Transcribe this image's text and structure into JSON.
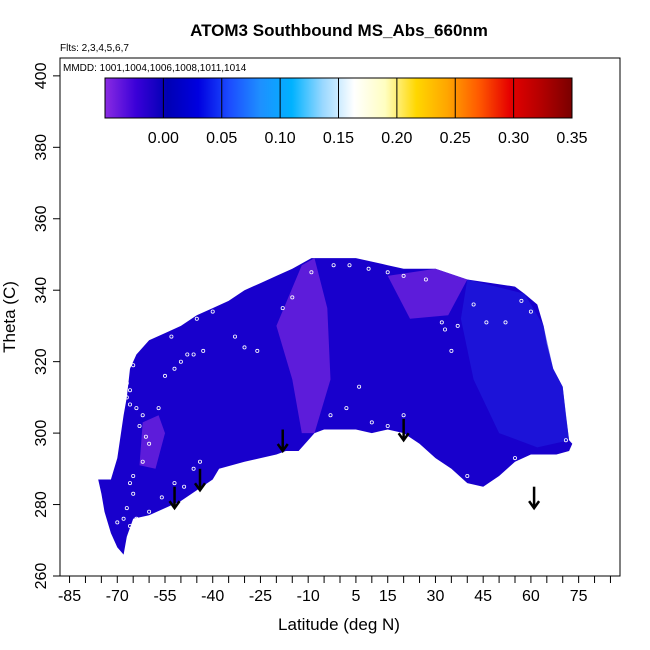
{
  "chart_data": {
    "type": "heatmap",
    "title": "ATOM3 Southbound MS_Abs_660nm",
    "flights_note": "Flts: 2,3,4,5,6,7",
    "mmdd_note": "MMDD: 1001,1004,1006,1008,1011,1014",
    "xlabel": "Latitude (deg N)",
    "ylabel": "Theta (C)",
    "xlim": [
      -88,
      88
    ],
    "ylim": [
      260,
      405
    ],
    "x_ticks": [
      -85,
      -70,
      -55,
      -40,
      -25,
      -10,
      5,
      15,
      30,
      45,
      60,
      75
    ],
    "x_minor_ticks": [
      -80,
      -75,
      -65,
      -60,
      -50,
      -45,
      -35,
      -30,
      -20,
      -15,
      -5,
      0,
      10,
      20,
      25,
      35,
      40,
      50,
      55,
      65,
      70,
      80,
      85
    ],
    "y_ticks": [
      260,
      280,
      300,
      320,
      340,
      360,
      380,
      400
    ],
    "grid": false,
    "colorbar": {
      "placement": "top",
      "range": [
        -0.05,
        0.35
      ],
      "ticks": [
        "0.00",
        "0.05",
        "0.10",
        "0.15",
        "0.20",
        "0.25",
        "0.30",
        "0.35"
      ],
      "tick_values": [
        0.0,
        0.05,
        0.1,
        0.15,
        0.2,
        0.25,
        0.3,
        0.35
      ],
      "colors": [
        "#8a2be2",
        "#3a00d8",
        "#0000b4",
        "#0000e0",
        "#1c4cff",
        "#1e90ff",
        "#00b2ff",
        "#9ad8ff",
        "#ffffff",
        "#fffec0",
        "#ffd700",
        "#ffa500",
        "#ff5a00",
        "#e60000",
        "#b40000",
        "#7a0000"
      ]
    },
    "field_color": "#1800cc",
    "field_color_light": "#2020e0",
    "field_color_purple": "#7a28e0",
    "data_envelope": {
      "upper": [
        [
          -72,
          287
        ],
        [
          -70,
          293
        ],
        [
          -68,
          305
        ],
        [
          -67,
          310
        ],
        [
          -66,
          318
        ],
        [
          -64,
          322
        ],
        [
          -60,
          326
        ],
        [
          -55,
          328
        ],
        [
          -50,
          330
        ],
        [
          -45,
          333
        ],
        [
          -40,
          335
        ],
        [
          -35,
          337
        ],
        [
          -30,
          340
        ],
        [
          -25,
          342
        ],
        [
          -20,
          344
        ],
        [
          -15,
          346
        ],
        [
          -13,
          347
        ],
        [
          -9,
          349
        ],
        [
          0,
          349
        ],
        [
          5,
          349
        ],
        [
          10,
          348
        ],
        [
          15,
          347
        ],
        [
          20,
          346
        ],
        [
          30,
          346
        ],
        [
          40,
          343
        ],
        [
          55,
          341
        ],
        [
          58,
          339
        ],
        [
          62,
          336
        ],
        [
          64,
          330
        ],
        [
          65,
          325
        ],
        [
          67,
          318
        ],
        [
          70,
          313
        ],
        [
          71,
          305
        ],
        [
          72,
          298
        ],
        [
          73,
          297
        ]
      ],
      "lower": [
        [
          72,
          295
        ],
        [
          68,
          294
        ],
        [
          60,
          294
        ],
        [
          55,
          292
        ],
        [
          50,
          288
        ],
        [
          45,
          285
        ],
        [
          40,
          286
        ],
        [
          35,
          290
        ],
        [
          30,
          293
        ],
        [
          25,
          297
        ],
        [
          20,
          300
        ],
        [
          15,
          301
        ],
        [
          10,
          300
        ],
        [
          5,
          301
        ],
        [
          0,
          301
        ],
        [
          -5,
          301
        ],
        [
          -8,
          300
        ],
        [
          -10,
          298
        ],
        [
          -13,
          295
        ],
        [
          -17,
          295
        ],
        [
          -20,
          294
        ],
        [
          -25,
          293
        ],
        [
          -30,
          292
        ],
        [
          -38,
          290
        ],
        [
          -40,
          287
        ],
        [
          -45,
          284
        ],
        [
          -50,
          281
        ],
        [
          -55,
          279
        ],
        [
          -60,
          277
        ],
        [
          -65,
          276
        ],
        [
          -67,
          271
        ],
        [
          -68,
          266
        ],
        [
          -70,
          268
        ],
        [
          -72,
          272
        ],
        [
          -74,
          278
        ],
        [
          -75,
          283
        ],
        [
          -76,
          287
        ]
      ]
    },
    "purple_regions": [
      [
        [
          -20,
          330
        ],
        [
          -12,
          347
        ],
        [
          -8,
          349
        ],
        [
          -4,
          335
        ],
        [
          -3,
          315
        ],
        [
          -8,
          300
        ],
        [
          -12,
          300
        ],
        [
          -15,
          315
        ]
      ],
      [
        [
          -62,
          303
        ],
        [
          -57,
          305
        ],
        [
          -55,
          300
        ],
        [
          -58,
          290
        ],
        [
          -63,
          291
        ]
      ],
      [
        [
          15,
          344
        ],
        [
          30,
          346
        ],
        [
          40,
          343
        ],
        [
          34,
          333
        ],
        [
          22,
          332
        ]
      ]
    ],
    "arrows": [
      {
        "x": -52,
        "y_top": 285,
        "y_bottom": 279
      },
      {
        "x": -44,
        "y_top": 290,
        "y_bottom": 284
      },
      {
        "x": -18,
        "y_top": 301,
        "y_bottom": 295
      },
      {
        "x": 20,
        "y_top": 304,
        "y_bottom": 298
      },
      {
        "x": 61,
        "y_top": 285,
        "y_bottom": 279
      }
    ],
    "sample_points": [
      [
        -66,
        326
      ],
      [
        -67,
        324
      ],
      [
        -66,
        322
      ],
      [
        -65,
        319
      ],
      [
        -67,
        314
      ],
      [
        -66,
        312
      ],
      [
        -67,
        310
      ],
      [
        -66,
        308
      ],
      [
        -64,
        307
      ],
      [
        -62,
        305
      ],
      [
        -63,
        302
      ],
      [
        -61,
        299
      ],
      [
        -60,
        297
      ],
      [
        -62,
        292
      ],
      [
        -65,
        288
      ],
      [
        -66,
        286
      ],
      [
        -65,
        283
      ],
      [
        -67,
        279
      ],
      [
        -68,
        276
      ],
      [
        -70,
        275
      ],
      [
        -66,
        274
      ],
      [
        -64,
        276
      ],
      [
        -60,
        278
      ],
      [
        -56,
        282
      ],
      [
        -52,
        286
      ],
      [
        -49,
        285
      ],
      [
        -46,
        290
      ],
      [
        -44,
        292
      ],
      [
        -57,
        307
      ],
      [
        -55,
        316
      ],
      [
        -52,
        318
      ],
      [
        -50,
        320
      ],
      [
        -48,
        322
      ],
      [
        -46,
        322
      ],
      [
        -43,
        323
      ],
      [
        -53,
        327
      ],
      [
        -45,
        332
      ],
      [
        -40,
        334
      ],
      [
        -33,
        327
      ],
      [
        -30,
        324
      ],
      [
        -26,
        323
      ],
      [
        -18,
        335
      ],
      [
        -15,
        338
      ],
      [
        -9,
        345
      ],
      [
        -2,
        347
      ],
      [
        3,
        347
      ],
      [
        9,
        346
      ],
      [
        15,
        345
      ],
      [
        20,
        344
      ],
      [
        27,
        343
      ],
      [
        32,
        331
      ],
      [
        33,
        329
      ],
      [
        37,
        330
      ],
      [
        35,
        323
      ],
      [
        42,
        336
      ],
      [
        46,
        331
      ],
      [
        52,
        331
      ],
      [
        57,
        337
      ],
      [
        60,
        334
      ],
      [
        67,
        339
      ],
      [
        6,
        313
      ],
      [
        2,
        307
      ],
      [
        -3,
        305
      ],
      [
        10,
        303
      ],
      [
        15,
        302
      ],
      [
        20,
        305
      ],
      [
        30,
        292
      ],
      [
        40,
        288
      ],
      [
        55,
        293
      ],
      [
        71,
        298
      ]
    ]
  }
}
